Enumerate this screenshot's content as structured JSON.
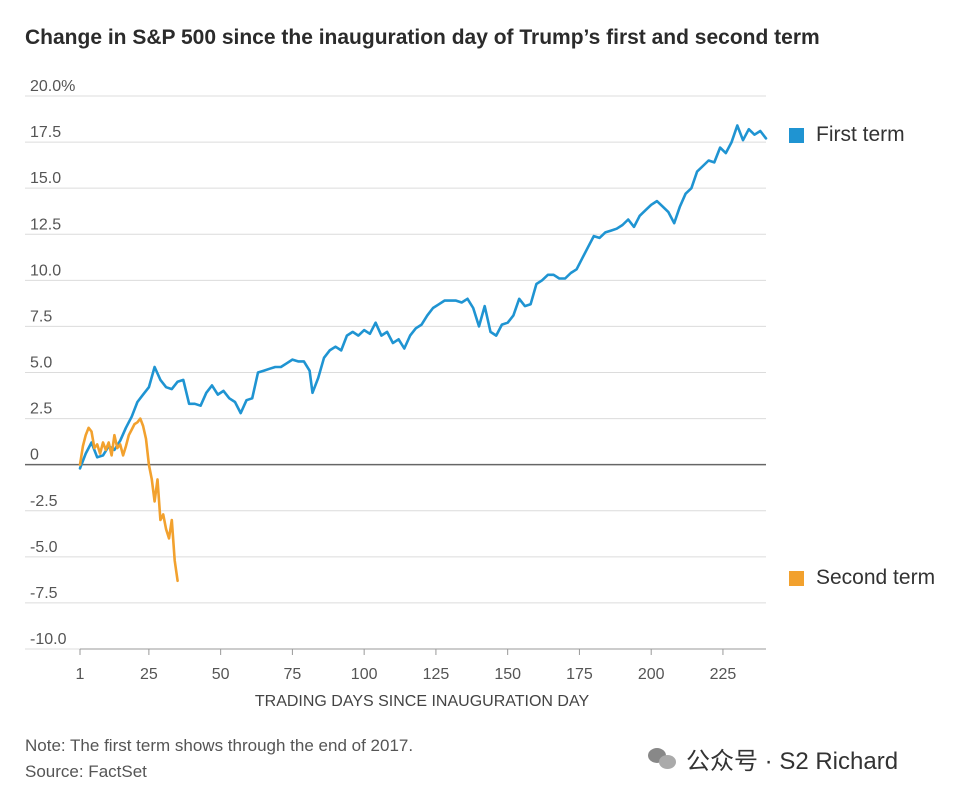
{
  "title": "Change in S&P 500 since the inauguration day of Trump’s first and second term",
  "note": "Note: The first term shows through the end of 2017.",
  "source": "Source: FactSet",
  "watermark": "公众号 · S2 Richard",
  "chart_data": {
    "type": "line",
    "title": "Change in S&P 500 since the inauguration day of Trump’s first and second term",
    "xlabel": "TRADING DAYS SINCE INAUGURATION DAY",
    "ylabel": "",
    "xlim": [
      1,
      240
    ],
    "ylim": [
      -10,
      20
    ],
    "x_ticks": [
      1,
      25,
      50,
      75,
      100,
      125,
      150,
      175,
      200,
      225
    ],
    "y_ticks": [
      20,
      17.5,
      15,
      12.5,
      10,
      7.5,
      5,
      2.5,
      0,
      -2.5,
      -5,
      -7.5,
      -10
    ],
    "y_tick_labels": [
      "20.0%",
      "17.5",
      "15.0",
      "12.5",
      "10.0",
      "7.5",
      "5.0",
      "2.5",
      "0",
      "-2.5",
      "-5.0",
      "-7.5",
      "-10.0"
    ],
    "grid": true,
    "legend_position": "right",
    "series": [
      {
        "name": "First term",
        "color": "#1f94d2",
        "x": [
          1,
          3,
          5,
          7,
          9,
          11,
          13,
          15,
          17,
          19,
          21,
          23,
          25,
          27,
          29,
          31,
          33,
          35,
          37,
          39,
          41,
          43,
          45,
          47,
          49,
          51,
          53,
          55,
          57,
          59,
          61,
          63,
          65,
          67,
          69,
          71,
          73,
          75,
          77,
          79,
          81,
          82,
          84,
          86,
          88,
          90,
          92,
          94,
          96,
          98,
          100,
          102,
          104,
          106,
          108,
          110,
          112,
          114,
          116,
          118,
          120,
          122,
          124,
          126,
          128,
          130,
          132,
          134,
          136,
          138,
          140,
          142,
          144,
          146,
          148,
          150,
          152,
          154,
          156,
          158,
          160,
          162,
          164,
          166,
          168,
          170,
          172,
          174,
          176,
          178,
          180,
          182,
          184,
          186,
          188,
          190,
          192,
          194,
          196,
          198,
          200,
          202,
          204,
          206,
          208,
          210,
          212,
          214,
          216,
          218,
          220,
          222,
          224,
          226,
          228,
          230,
          232,
          234,
          236,
          238,
          240
        ],
        "values": [
          -0.2,
          0.6,
          1.2,
          0.4,
          0.5,
          1.0,
          0.8,
          1.3,
          2.0,
          2.6,
          3.4,
          3.8,
          4.2,
          5.3,
          4.6,
          4.2,
          4.1,
          4.5,
          4.6,
          3.3,
          3.3,
          3.2,
          3.9,
          4.3,
          3.8,
          4.0,
          3.6,
          3.4,
          2.8,
          3.5,
          3.6,
          5.0,
          5.1,
          5.2,
          5.3,
          5.3,
          5.5,
          5.7,
          5.6,
          5.6,
          5.1,
          3.9,
          4.7,
          5.8,
          6.2,
          6.4,
          6.2,
          7.0,
          7.2,
          7.0,
          7.3,
          7.1,
          7.7,
          7.0,
          7.2,
          6.6,
          6.8,
          6.3,
          7.0,
          7.4,
          7.6,
          8.1,
          8.5,
          8.7,
          8.9,
          8.9,
          8.9,
          8.8,
          9.0,
          8.5,
          7.5,
          8.6,
          7.2,
          7.0,
          7.6,
          7.7,
          8.1,
          9.0,
          8.6,
          8.7,
          9.8,
          10.0,
          10.3,
          10.3,
          10.1,
          10.1,
          10.4,
          10.6,
          11.2,
          11.8,
          12.4,
          12.3,
          12.6,
          12.7,
          12.8,
          13.0,
          13.3,
          12.9,
          13.5,
          13.8,
          14.1,
          14.3,
          14.0,
          13.7,
          13.1,
          14.0,
          14.7,
          15.0,
          15.9,
          16.2,
          16.5,
          16.4,
          17.2,
          16.9,
          17.5,
          18.4,
          17.6,
          18.2,
          17.9,
          18.1,
          17.7
        ]
      },
      {
        "name": "Second term",
        "color": "#f2a12e",
        "x": [
          1,
          2,
          3,
          4,
          5,
          6,
          7,
          8,
          9,
          10,
          11,
          12,
          13,
          14,
          15,
          16,
          17,
          18,
          19,
          20,
          21,
          22,
          23,
          24,
          25,
          26,
          27,
          28,
          29,
          30,
          31,
          32,
          33,
          34,
          35
        ],
        "values": [
          0.0,
          1.0,
          1.6,
          2.0,
          1.8,
          0.9,
          1.1,
          0.6,
          1.2,
          0.8,
          1.2,
          0.5,
          1.6,
          0.9,
          1.1,
          0.5,
          1.0,
          1.6,
          1.9,
          2.2,
          2.3,
          2.5,
          2.1,
          1.4,
          0.0,
          -0.8,
          -2.0,
          -0.8,
          -3.0,
          -2.7,
          -3.5,
          -4.0,
          -3.0,
          -5.2,
          -6.3
        ]
      }
    ]
  }
}
